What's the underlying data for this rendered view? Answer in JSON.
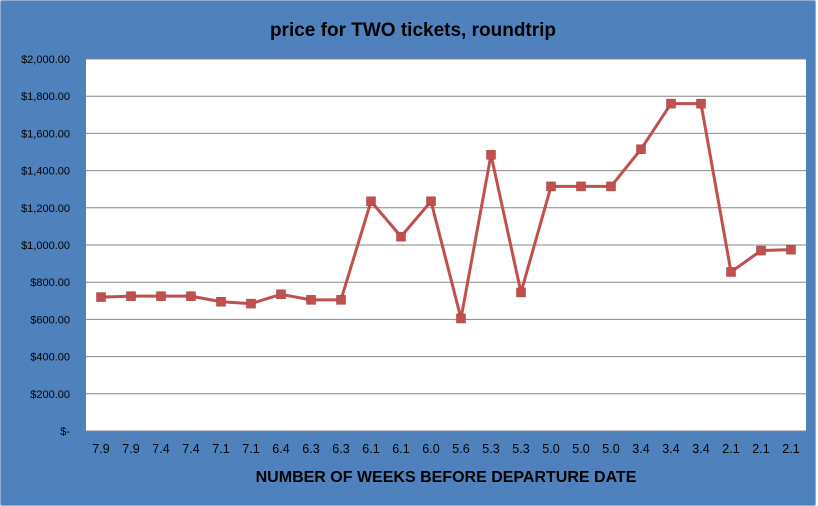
{
  "chart_data": {
    "type": "line",
    "title": "price for TWO tickets, roundtrip",
    "xlabel": "NUMBER OF WEEKS BEFORE DEPARTURE DATE",
    "ylabel": "",
    "categories": [
      "7.9",
      "7.9",
      "7.4",
      "7.4",
      "7.1",
      "7.1",
      "6.4",
      "6.3",
      "6.3",
      "6.1",
      "6.1",
      "6.0",
      "5.6",
      "5.3",
      "5.3",
      "5.0",
      "5.0",
      "5.0",
      "3.4",
      "3.4",
      "3.4",
      "2.1",
      "2.1",
      "2.1"
    ],
    "series": [
      {
        "values": [
          720,
          725,
          725,
          725,
          695,
          685,
          735,
          705,
          705,
          1235,
          1045,
          1235,
          605,
          1485,
          745,
          1315,
          1315,
          1315,
          1515,
          1760,
          1760,
          855,
          970,
          975
        ]
      }
    ],
    "ylim": [
      0,
      2000
    ],
    "yticks": [
      0,
      200,
      400,
      600,
      800,
      1000,
      1200,
      1400,
      1600,
      1800,
      2000
    ],
    "ytick_labels": [
      "$-",
      "$200.00",
      "$400.00",
      "$600.00",
      "$800.00",
      "$1,000.00",
      "$1,200.00",
      "$1,400.00",
      "$1,600.00",
      "$1,800.00",
      "$2,000.00"
    ],
    "grid": true,
    "legend": "none",
    "colors": {
      "frame": "#4f81bd",
      "plot_bg": "#ffffff",
      "gridline": "#868686",
      "series": "#c0504d"
    }
  }
}
